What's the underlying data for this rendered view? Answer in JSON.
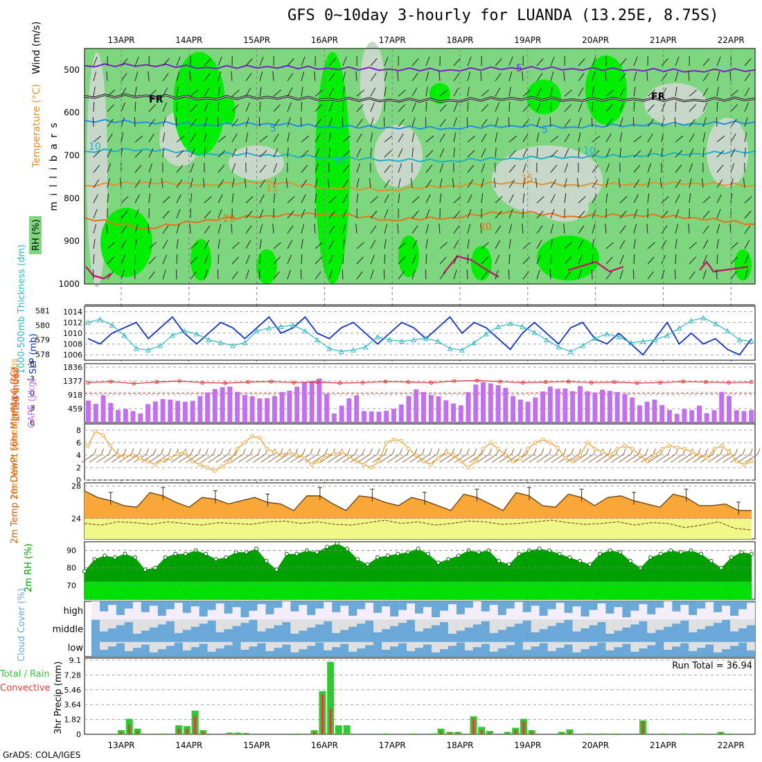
{
  "title": "GFS 0~10day 3-hourly for LUANDA (13.25E, 8.75S)",
  "credit": "GrADS: COLA/IGES",
  "colors": {
    "rh_light": "#7ed67e",
    "rh_bright": "#00ee00",
    "rh_gray": "#c8d8c8",
    "temp_purple": "#7a1fc8",
    "freezing": "#000000",
    "temp_blue": "#1f8fe0",
    "temp_teal": "#1ab0c8",
    "temp_orange": "#e0902a",
    "temp_dark_orange": "#e8701a",
    "temp_magenta": "#c0206a",
    "slp": "#1030c8",
    "thickness": "#30b8c0",
    "lifted_index": "#e02828",
    "cape": "#c070f0",
    "wind10": "#f0a030",
    "barb_brown": "#8a6030",
    "temp2m_fill": "#f8a838",
    "dewpt_fill": "#f0f888",
    "dewpt_line": "#8a5020",
    "rh2m_dark": "#00a000",
    "rh2m_light": "#00e000",
    "cloud_blue": "#6aa8d8",
    "cloud_gray": "#e0e0e0",
    "cloud_high_bg": "#f4eef8",
    "precip_total": "#30c830",
    "precip_conv": "#e83838"
  },
  "chart_data": [
    {
      "type": "heatmap",
      "panel": "upper-air",
      "dates": [
        "13APR",
        "14APR",
        "15APR",
        "16APR",
        "17APR",
        "18APR",
        "19APR",
        "20APR",
        "21APR",
        "22APR"
      ],
      "ylabel": "m i l l i b a r s",
      "y_ticks": [
        500,
        600,
        700,
        800,
        900,
        1000
      ],
      "ylim": [
        450,
        1000
      ],
      "legend_labels": [
        "RH (%)",
        "Temperature (°C)",
        "Wind (m/s)"
      ],
      "contour_labels": [
        {
          "text": "5",
          "level": "temp"
        },
        {
          "text": "FR",
          "level": "freezing"
        },
        {
          "text": "FR",
          "level": "freezing"
        },
        {
          "text": "5",
          "level": "temp"
        },
        {
          "text": "5",
          "level": "temp"
        },
        {
          "text": "10",
          "level": "temp"
        },
        {
          "text": "10",
          "level": "temp"
        },
        {
          "text": "10",
          "level": "temp"
        },
        {
          "text": "15",
          "level": "temp"
        },
        {
          "text": "15",
          "level": "temp"
        },
        {
          "text": "20",
          "level": "temp"
        },
        {
          "text": "20",
          "level": "temp"
        }
      ],
      "isotherms": [
        {
          "name": "-5",
          "pressure": [
            490,
            488,
            494,
            492,
            496,
            498,
            500,
            495,
            497,
            499,
            502,
            500
          ]
        },
        {
          "name": "0",
          "pressure": [
            562,
            560,
            566,
            563,
            568,
            570,
            571,
            566,
            569,
            568,
            570,
            567
          ]
        },
        {
          "name": "5",
          "pressure": [
            618,
            622,
            628,
            625,
            632,
            634,
            636,
            630,
            633,
            628,
            625,
            622
          ]
        },
        {
          "name": "10",
          "pressure": [
            690,
            685,
            695,
            698,
            704,
            710,
            712,
            706,
            703,
            700,
            695,
            690
          ]
        },
        {
          "name": "15",
          "pressure": [
            770,
            762,
            768,
            760,
            775,
            780,
            770,
            762,
            768,
            766,
            764,
            770
          ]
        },
        {
          "name": "20",
          "pressure": [
            845,
            870,
            850,
            840,
            835,
            850,
            845,
            830,
            842,
            838,
            845,
            860
          ]
        }
      ]
    },
    {
      "type": "line",
      "panel": "slp-thickness",
      "left_ticks": [
        578,
        579,
        580,
        581
      ],
      "right_ticks": [
        1006,
        1008,
        1010,
        1012,
        1014
      ],
      "ylabel_left": "1000-500mb Thickness (dm)",
      "ylabel_right": "SLP (mb)",
      "series": [
        {
          "name": "SLP",
          "values": [
            1009,
            1008,
            1010,
            1011,
            1012,
            1009,
            1011,
            1013,
            1010,
            1008,
            1010,
            1012,
            1011,
            1009,
            1011,
            1013,
            1010,
            1011,
            1013,
            1010,
            1009,
            1011,
            1012,
            1010,
            1008,
            1010,
            1012,
            1011,
            1009,
            1011,
            1013,
            1010,
            1012,
            1011,
            1009,
            1007,
            1010,
            1012,
            1010,
            1008,
            1011,
            1012,
            1009,
            1008,
            1010,
            1008,
            1006,
            1009,
            1012,
            1008,
            1010,
            1008,
            1009,
            1007,
            1006,
            1009
          ]
        },
        {
          "name": "Thickness",
          "values": [
            580.2,
            580.4,
            580.0,
            579.3,
            578.4,
            578.3,
            578.6,
            579.3,
            579.6,
            579.4,
            579.0,
            578.8,
            578.6,
            578.8,
            579.6,
            579.8,
            579.9,
            580.0,
            579.6,
            579.0,
            578.4,
            578.2,
            578.3,
            578.5,
            579.2,
            579.0,
            578.9,
            579.0,
            579.1,
            578.9,
            578.4,
            578.3,
            578.8,
            579.4,
            579.9,
            580.1,
            579.9,
            579.5,
            579.0,
            578.5,
            578.2,
            578.6,
            579.1,
            579.4,
            579.2,
            578.8,
            578.9,
            579.0,
            579.3,
            579.8,
            580.3,
            580.5,
            580.1,
            579.6,
            579.0,
            578.9
          ]
        }
      ]
    },
    {
      "type": "bar",
      "panel": "cape-li",
      "left_ticks": [
        6,
        3,
        0,
        -3,
        -6
      ],
      "right_ticks": [
        459,
        918,
        1377,
        1836
      ],
      "ylabel_left": "Lifted Index",
      "ylabel_right": "CAPE (J/kg)",
      "series": [
        {
          "name": "CAPE",
          "values": [
            730,
            620,
            900,
            650,
            420,
            450,
            380,
            300,
            610,
            700,
            780,
            760,
            720,
            690,
            720,
            880,
            1000,
            1110,
            1170,
            1190,
            1020,
            910,
            870,
            800,
            810,
            880,
            1010,
            1060,
            1190,
            1320,
            1380,
            1460,
            950,
            300,
            560,
            800,
            900,
            380,
            370,
            360,
            390,
            460,
            600,
            880,
            1100,
            1010,
            910,
            870,
            740,
            630,
            570,
            1010,
            1260,
            1340,
            1300,
            1240,
            1150,
            880,
            760,
            690,
            830,
            1030,
            1190,
            1120,
            1130,
            1040,
            1210,
            1040,
            1000,
            1090,
            1050,
            1010,
            940,
            830,
            570,
            690,
            760,
            580,
            420,
            290,
            450,
            410,
            560,
            310,
            410,
            1020,
            880,
            410,
            380,
            420
          ]
        },
        {
          "name": "Lifted Index",
          "values": [
            -3,
            -3.2,
            -2.8,
            -3.1,
            -3.3,
            -3.0,
            -2.9,
            -3.1,
            -3.2,
            -3.0,
            -3.1,
            -2.9,
            -3.0,
            -3.2,
            -3.1,
            -3.0,
            -3.3,
            -3.4,
            -3.2,
            -3.0,
            -3.1,
            -3.2,
            -3.0,
            -3.1,
            -2.9,
            -3.0,
            -3.2,
            -3.1,
            -3.0,
            -3.1
          ]
        }
      ]
    },
    {
      "type": "line",
      "panel": "wind10m",
      "y_ticks": [
        0,
        2,
        4,
        6,
        8
      ],
      "ylabel": "10m Wind Speed (m/s) & Barbs",
      "series": [
        {
          "name": "Wind speed",
          "values": [
            5.5,
            7.8,
            7.2,
            5.5,
            4.0,
            3.8,
            4.0,
            3.5,
            3.0,
            2.5,
            3.2,
            3.5,
            4.2,
            4.5,
            3.0,
            2.5,
            2.0,
            1.5,
            2.2,
            3.0,
            5.0,
            6.0,
            7.0,
            6.8,
            5.0,
            4.5,
            4.0,
            4.5,
            4.0,
            3.5,
            2.5,
            3.0,
            4.0,
            4.2,
            4.5,
            3.8,
            3.0,
            2.5,
            2.0,
            3.0,
            6.0,
            6.5,
            6.3,
            5.0,
            4.0,
            3.0,
            2.5,
            3.5,
            4.5,
            4.0,
            3.0,
            2.0,
            3.0,
            5.0,
            6.0,
            5.0,
            4.0,
            3.0,
            3.5,
            5.0,
            6.0,
            6.5,
            6.0,
            5.2,
            3.5,
            3.0,
            4.0,
            6.0,
            5.0,
            4.5,
            4.0,
            5.0,
            5.5,
            5.0,
            4.0,
            3.0,
            4.0,
            5.0,
            5.5,
            5.2,
            5.0,
            4.5,
            4.0,
            3.5,
            5.0,
            5.5,
            4.5,
            3.0,
            2.5,
            3.0
          ]
        }
      ]
    },
    {
      "type": "area",
      "panel": "temp2m",
      "y_ticks": [
        24,
        28
      ],
      "ylabel": "2m Temp 2m DewPt (6hr Min/Max) (°C)",
      "series": [
        {
          "name": "Temp",
          "values": [
            27.4,
            26.6,
            26.2,
            25.6,
            25.4,
            27.2,
            26.8,
            26.0,
            25.4,
            26.6,
            26.4,
            25.8,
            26.2,
            26.6,
            26.0,
            25.8,
            25.0,
            26.8,
            26.8,
            25.8,
            25.0,
            26.8,
            26.6,
            26.0,
            25.6,
            26.6,
            26.2,
            25.6,
            25.0,
            27.0,
            26.6,
            25.8,
            25.0,
            27.2,
            26.8,
            25.6,
            25.4,
            27.0,
            26.6,
            25.6,
            26.6,
            26.8,
            26.2,
            25.8,
            25.4,
            27.0,
            26.6,
            25.6,
            25.6,
            25.8,
            25.0,
            25.0
          ]
        },
        {
          "name": "DewPt",
          "values": [
            23.4,
            23.2,
            23.6,
            23.5,
            23.3,
            23.6,
            23.4,
            23.2,
            23.5,
            23.4,
            23.3,
            23.6,
            23.7,
            23.4,
            23.6,
            23.3,
            23.2,
            23.5,
            23.8,
            23.4,
            23.6,
            23.2,
            23.4,
            23.7,
            23.6,
            23.3,
            23.4,
            23.6,
            23.8,
            23.5,
            23.3,
            23.4,
            23.6,
            23.2,
            23.5,
            23.4,
            22.9,
            23.2,
            23.6,
            22.8,
            22.6
          ]
        }
      ]
    },
    {
      "type": "area",
      "panel": "rh2m",
      "y_ticks": [
        70,
        80,
        90
      ],
      "ylabel": "2m RH (%)",
      "series": [
        {
          "name": "RH",
          "values": [
            78,
            85,
            87,
            86,
            88,
            86,
            79,
            80,
            86,
            88,
            88,
            90,
            88,
            85,
            86,
            89,
            89,
            91,
            84,
            79,
            88,
            88,
            90,
            89,
            92,
            94,
            91,
            85,
            82,
            86,
            87,
            88,
            89,
            91,
            88,
            83,
            85,
            87,
            90,
            89,
            90,
            84,
            82,
            88,
            90,
            91,
            90,
            88,
            86,
            84,
            82,
            88,
            90,
            89,
            84,
            80,
            86,
            88,
            90,
            89,
            90,
            88,
            84,
            80,
            86,
            89,
            88
          ]
        }
      ]
    },
    {
      "type": "heatmap",
      "panel": "cloud",
      "rows": [
        "high",
        "middle",
        "low"
      ],
      "ylabel": "Cloud Cover (%)"
    },
    {
      "type": "bar",
      "panel": "precip",
      "y_ticks": [
        0,
        1.82,
        3.64,
        5.46,
        7.28,
        9.1
      ],
      "ylabel": "3hr Precip (mm)",
      "series_labels": [
        "Total / Rain",
        "Convective"
      ],
      "run_total": "Run Total = 36.94",
      "x_dates": [
        "13APR",
        "14APR",
        "15APR",
        "16APR",
        "17APR",
        "18APR",
        "19APR",
        "20APR",
        "21APR",
        "22APR"
      ],
      "bars": [
        {
          "date_index": 0.0,
          "total": 0.5,
          "conv": 0.3
        },
        {
          "date_index": 0.12,
          "total": 1.9,
          "conv": 1.2
        },
        {
          "date_index": 0.24,
          "total": 0.7,
          "conv": 0.4
        },
        {
          "date_index": 0.6,
          "total": 0.1,
          "conv": 0.05
        },
        {
          "date_index": 0.85,
          "total": 1.1,
          "conv": 0.7
        },
        {
          "date_index": 0.97,
          "total": 1.0,
          "conv": 0.6
        },
        {
          "date_index": 1.09,
          "total": 2.9,
          "conv": 2.2
        },
        {
          "date_index": 1.21,
          "total": 0.5,
          "conv": 0.3
        },
        {
          "date_index": 1.6,
          "total": 0.2,
          "conv": 0.1
        },
        {
          "date_index": 1.72,
          "total": 0.2,
          "conv": 0.1
        },
        {
          "date_index": 1.84,
          "total": 0.15,
          "conv": 0.1
        },
        {
          "date_index": 2.6,
          "total": 0.1,
          "conv": 0.05
        },
        {
          "date_index": 2.85,
          "total": 0.5,
          "conv": 0.3
        },
        {
          "date_index": 2.97,
          "total": 5.3,
          "conv": 4.9
        },
        {
          "date_index": 3.09,
          "total": 8.9,
          "conv": 3.1
        },
        {
          "date_index": 3.21,
          "total": 1.1,
          "conv": 0.0
        },
        {
          "date_index": 3.33,
          "total": 1.1,
          "conv": 0.0
        },
        {
          "date_index": 3.9,
          "total": 0.1,
          "conv": 0.05
        },
        {
          "date_index": 4.3,
          "total": 0.1,
          "conv": 0.05
        },
        {
          "date_index": 4.6,
          "total": 0.1,
          "conv": 0.05
        },
        {
          "date_index": 4.72,
          "total": 0.7,
          "conv": 0.4
        },
        {
          "date_index": 4.85,
          "total": 0.3,
          "conv": 0.2
        },
        {
          "date_index": 4.97,
          "total": 0.3,
          "conv": 0.2
        },
        {
          "date_index": 5.2,
          "total": 2.2,
          "conv": 1.9
        },
        {
          "date_index": 5.32,
          "total": 0.9,
          "conv": 0.5
        },
        {
          "date_index": 5.44,
          "total": 0.4,
          "conv": 0.2
        },
        {
          "date_index": 5.7,
          "total": 0.3,
          "conv": 0.15
        },
        {
          "date_index": 5.82,
          "total": 0.8,
          "conv": 0.5
        },
        {
          "date_index": 5.94,
          "total": 1.9,
          "conv": 1.6
        },
        {
          "date_index": 6.06,
          "total": 0.5,
          "conv": 0.3
        },
        {
          "date_index": 6.5,
          "total": 0.3,
          "conv": 0.2
        },
        {
          "date_index": 6.62,
          "total": 0.6,
          "conv": 0.3
        },
        {
          "date_index": 6.9,
          "total": 0.1,
          "conv": 0.05
        },
        {
          "date_index": 7.1,
          "total": 0.1,
          "conv": 0.05
        },
        {
          "date_index": 7.3,
          "total": 0.1,
          "conv": 0.05
        },
        {
          "date_index": 7.7,
          "total": 1.7,
          "conv": 1.6
        },
        {
          "date_index": 8.0,
          "total": 0.1,
          "conv": 0.05
        },
        {
          "date_index": 8.3,
          "total": 0.1,
          "conv": 0.05
        },
        {
          "date_index": 8.55,
          "total": 0.1,
          "conv": 0.05
        },
        {
          "date_index": 8.85,
          "total": 0.3,
          "conv": 0.2
        },
        {
          "date_index": 8.97,
          "total": 0.1,
          "conv": 0.05
        }
      ]
    }
  ]
}
